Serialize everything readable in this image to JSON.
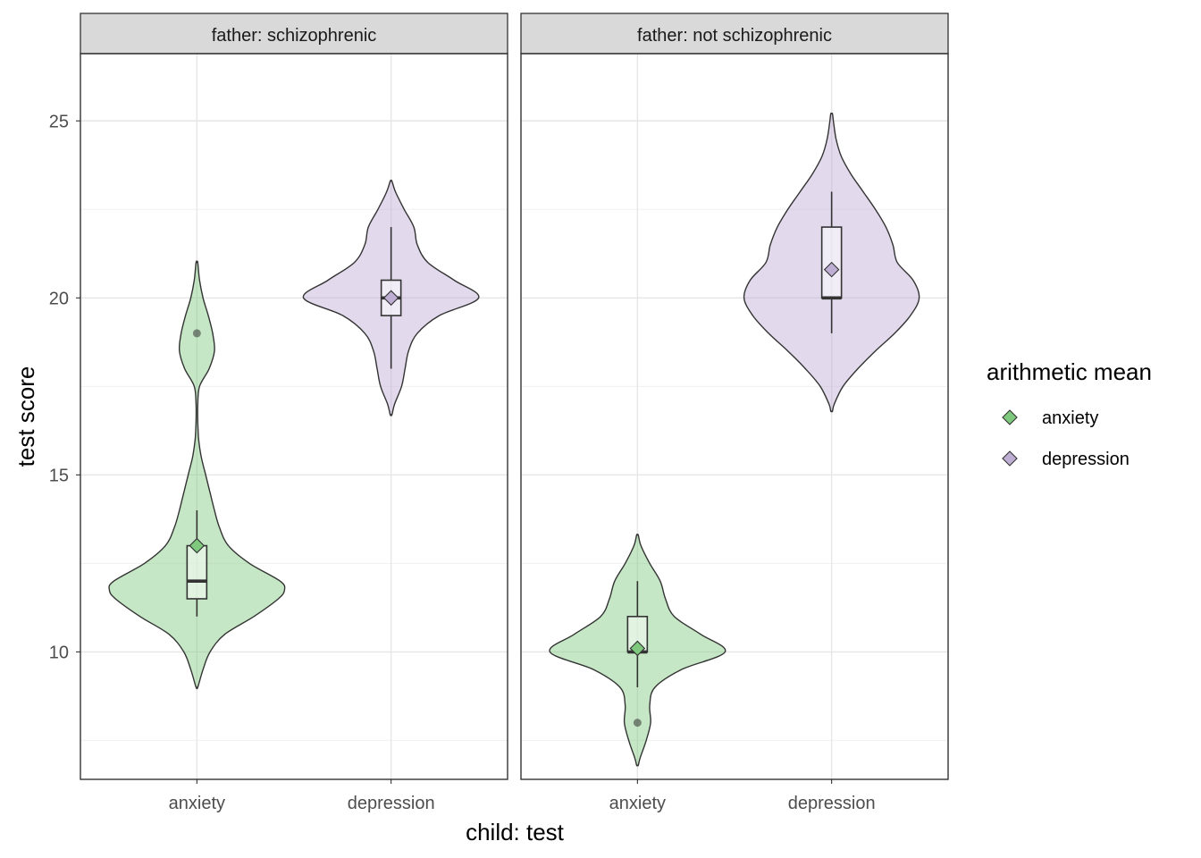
{
  "chart_data": {
    "type": "violin",
    "xlabel": "child: test",
    "ylabel": "test score",
    "ylim": [
      6.4,
      26.9
    ],
    "yticks": [
      10,
      15,
      20,
      25
    ],
    "categories": [
      "anxiety",
      "depression"
    ],
    "legend": {
      "title": "arithmetic mean",
      "placement": "right",
      "entries": [
        {
          "label": "anxiety",
          "color": "#7fc97f"
        },
        {
          "label": "depression",
          "color": "#beaed4"
        }
      ]
    },
    "panels": [
      {
        "strip": "father: schizophrenic",
        "groups": [
          {
            "category": "anxiety",
            "color": "#7fc97f",
            "violin_range": [
              9.0,
              21.0
            ],
            "density": [
              [
                9.0,
                0.01
              ],
              [
                9.5,
                0.07
              ],
              [
                10.0,
                0.15
              ],
              [
                10.5,
                0.32
              ],
              [
                11.0,
                0.65
              ],
              [
                11.5,
                0.93
              ],
              [
                11.75,
                1.0
              ],
              [
                12.0,
                0.95
              ],
              [
                12.5,
                0.6
              ],
              [
                13.0,
                0.36
              ],
              [
                13.5,
                0.26
              ],
              [
                14.0,
                0.2
              ],
              [
                14.5,
                0.15
              ],
              [
                15.0,
                0.1
              ],
              [
                15.5,
                0.05
              ],
              [
                16.0,
                0.02
              ],
              [
                16.5,
                0.01
              ],
              [
                17.0,
                0.01
              ],
              [
                17.5,
                0.03
              ],
              [
                18.0,
                0.14
              ],
              [
                18.5,
                0.2
              ],
              [
                19.0,
                0.18
              ],
              [
                19.5,
                0.13
              ],
              [
                20.0,
                0.07
              ],
              [
                20.5,
                0.03
              ],
              [
                21.0,
                0.01
              ]
            ],
            "box": {
              "q1": 11.5,
              "median": 12,
              "q3": 13,
              "whisker_low": 11,
              "whisker_high": 14
            },
            "outliers": [
              19
            ],
            "mean": 13
          },
          {
            "category": "depression",
            "color": "#beaed4",
            "violin_range": [
              16.7,
              23.3
            ],
            "density": [
              [
                16.7,
                0.01
              ],
              [
                17.0,
                0.04
              ],
              [
                17.5,
                0.12
              ],
              [
                18.0,
                0.16
              ],
              [
                18.5,
                0.2
              ],
              [
                19.0,
                0.3
              ],
              [
                19.5,
                0.55
              ],
              [
                20.0,
                1.0
              ],
              [
                20.5,
                0.72
              ],
              [
                21.0,
                0.42
              ],
              [
                21.5,
                0.3
              ],
              [
                22.0,
                0.26
              ],
              [
                22.5,
                0.15
              ],
              [
                23.0,
                0.05
              ],
              [
                23.3,
                0.01
              ]
            ],
            "box": {
              "q1": 19.5,
              "median": 20,
              "q3": 20.5,
              "whisker_low": 18,
              "whisker_high": 22
            },
            "outliers": [],
            "mean": 20
          }
        ]
      },
      {
        "strip": "father: not schizophrenic",
        "groups": [
          {
            "category": "anxiety",
            "color": "#7fc97f",
            "violin_range": [
              6.8,
              13.3
            ],
            "density": [
              [
                6.8,
                0.01
              ],
              [
                7.0,
                0.03
              ],
              [
                7.5,
                0.1
              ],
              [
                8.0,
                0.15
              ],
              [
                8.5,
                0.14
              ],
              [
                9.0,
                0.2
              ],
              [
                9.5,
                0.5
              ],
              [
                10.0,
                1.0
              ],
              [
                10.5,
                0.72
              ],
              [
                11.0,
                0.42
              ],
              [
                11.5,
                0.32
              ],
              [
                12.0,
                0.26
              ],
              [
                12.5,
                0.14
              ],
              [
                13.0,
                0.04
              ],
              [
                13.3,
                0.01
              ]
            ],
            "box": {
              "q1": 10,
              "median": 10,
              "q3": 11,
              "whisker_low": 9,
              "whisker_high": 12
            },
            "outliers": [
              8
            ],
            "mean": 10.1
          },
          {
            "category": "depression",
            "color": "#beaed4",
            "violin_range": [
              16.8,
              25.2
            ],
            "density": [
              [
                16.8,
                0.01
              ],
              [
                17.0,
                0.03
              ],
              [
                17.5,
                0.13
              ],
              [
                18.0,
                0.3
              ],
              [
                18.5,
                0.5
              ],
              [
                19.0,
                0.72
              ],
              [
                19.5,
                0.9
              ],
              [
                20.0,
                1.0
              ],
              [
                20.5,
                0.93
              ],
              [
                21.0,
                0.75
              ],
              [
                21.5,
                0.7
              ],
              [
                22.0,
                0.62
              ],
              [
                22.5,
                0.5
              ],
              [
                23.0,
                0.36
              ],
              [
                23.5,
                0.22
              ],
              [
                24.0,
                0.11
              ],
              [
                24.5,
                0.05
              ],
              [
                25.0,
                0.02
              ],
              [
                25.2,
                0.01
              ]
            ],
            "box": {
              "q1": 20,
              "median": 20,
              "q3": 22,
              "whisker_low": 19,
              "whisker_high": 23
            },
            "outliers": [],
            "mean": 20.8
          }
        ]
      }
    ]
  }
}
